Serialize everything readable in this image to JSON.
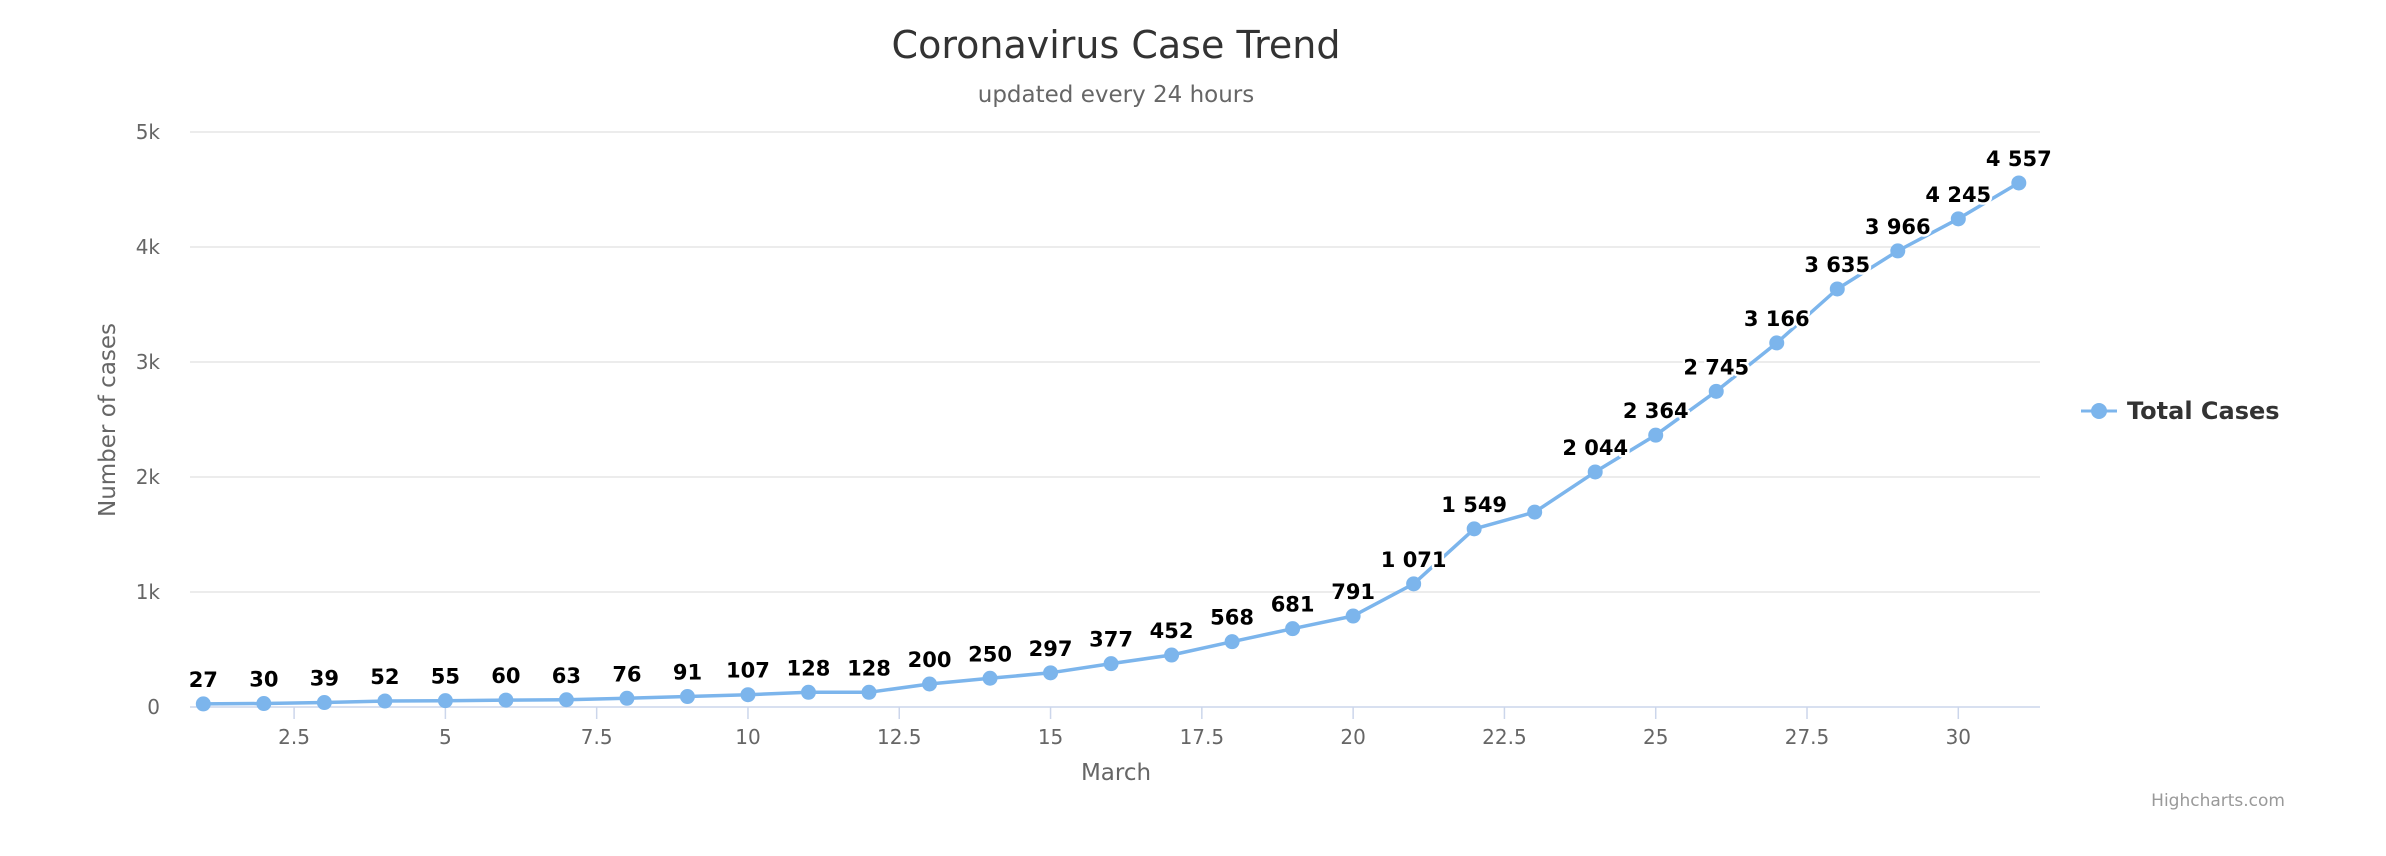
{
  "chart_data": {
    "type": "line",
    "title": "Coronavirus Case Trend",
    "subtitle": "updated every 24 hours",
    "xlabel": "March",
    "ylabel": "Number of cases",
    "xlim": [
      0.78,
      31.35
    ],
    "ylim": [
      0,
      5000
    ],
    "x_ticks": [
      2.5,
      5,
      7.5,
      10,
      12.5,
      15,
      17.5,
      20,
      22.5,
      25,
      27.5,
      30
    ],
    "x_tick_labels": [
      "2.5",
      "5",
      "7.5",
      "10",
      "12.5",
      "15",
      "17.5",
      "20",
      "22.5",
      "25",
      "27.5",
      "30"
    ],
    "y_ticks": [
      0,
      1000,
      2000,
      3000,
      4000,
      5000
    ],
    "y_tick_labels": [
      "0",
      "1k",
      "2k",
      "3k",
      "4k",
      "5k"
    ],
    "grid": true,
    "legend_position": "right",
    "color": "#7cb5ec",
    "series": [
      {
        "name": "Total Cases",
        "x": [
          1,
          2,
          3,
          4,
          5,
          6,
          7,
          8,
          9,
          10,
          11,
          12,
          13,
          14,
          15,
          16,
          17,
          18,
          19,
          20,
          21,
          22,
          23,
          24,
          25,
          26,
          27,
          28,
          29,
          30,
          31
        ],
        "values": [
          27,
          30,
          39,
          52,
          55,
          60,
          63,
          76,
          91,
          107,
          128,
          128,
          200,
          250,
          297,
          377,
          452,
          568,
          681,
          791,
          1071,
          1549,
          1695,
          2044,
          2364,
          2745,
          3166,
          3635,
          3966,
          4245,
          4557
        ],
        "labels": [
          "27",
          "30",
          "39",
          "52",
          "55",
          "60",
          "63",
          "76",
          "91",
          "107",
          "128",
          "128",
          "200",
          "250",
          "297",
          "377",
          "452",
          "568",
          "681",
          "791",
          "1 071",
          "1 549",
          "",
          "2 044",
          "2 364",
          "2 745",
          "3 166",
          "3 635",
          "3 966",
          "4 245",
          "4 557"
        ]
      }
    ],
    "credits": "Highcharts.com"
  }
}
